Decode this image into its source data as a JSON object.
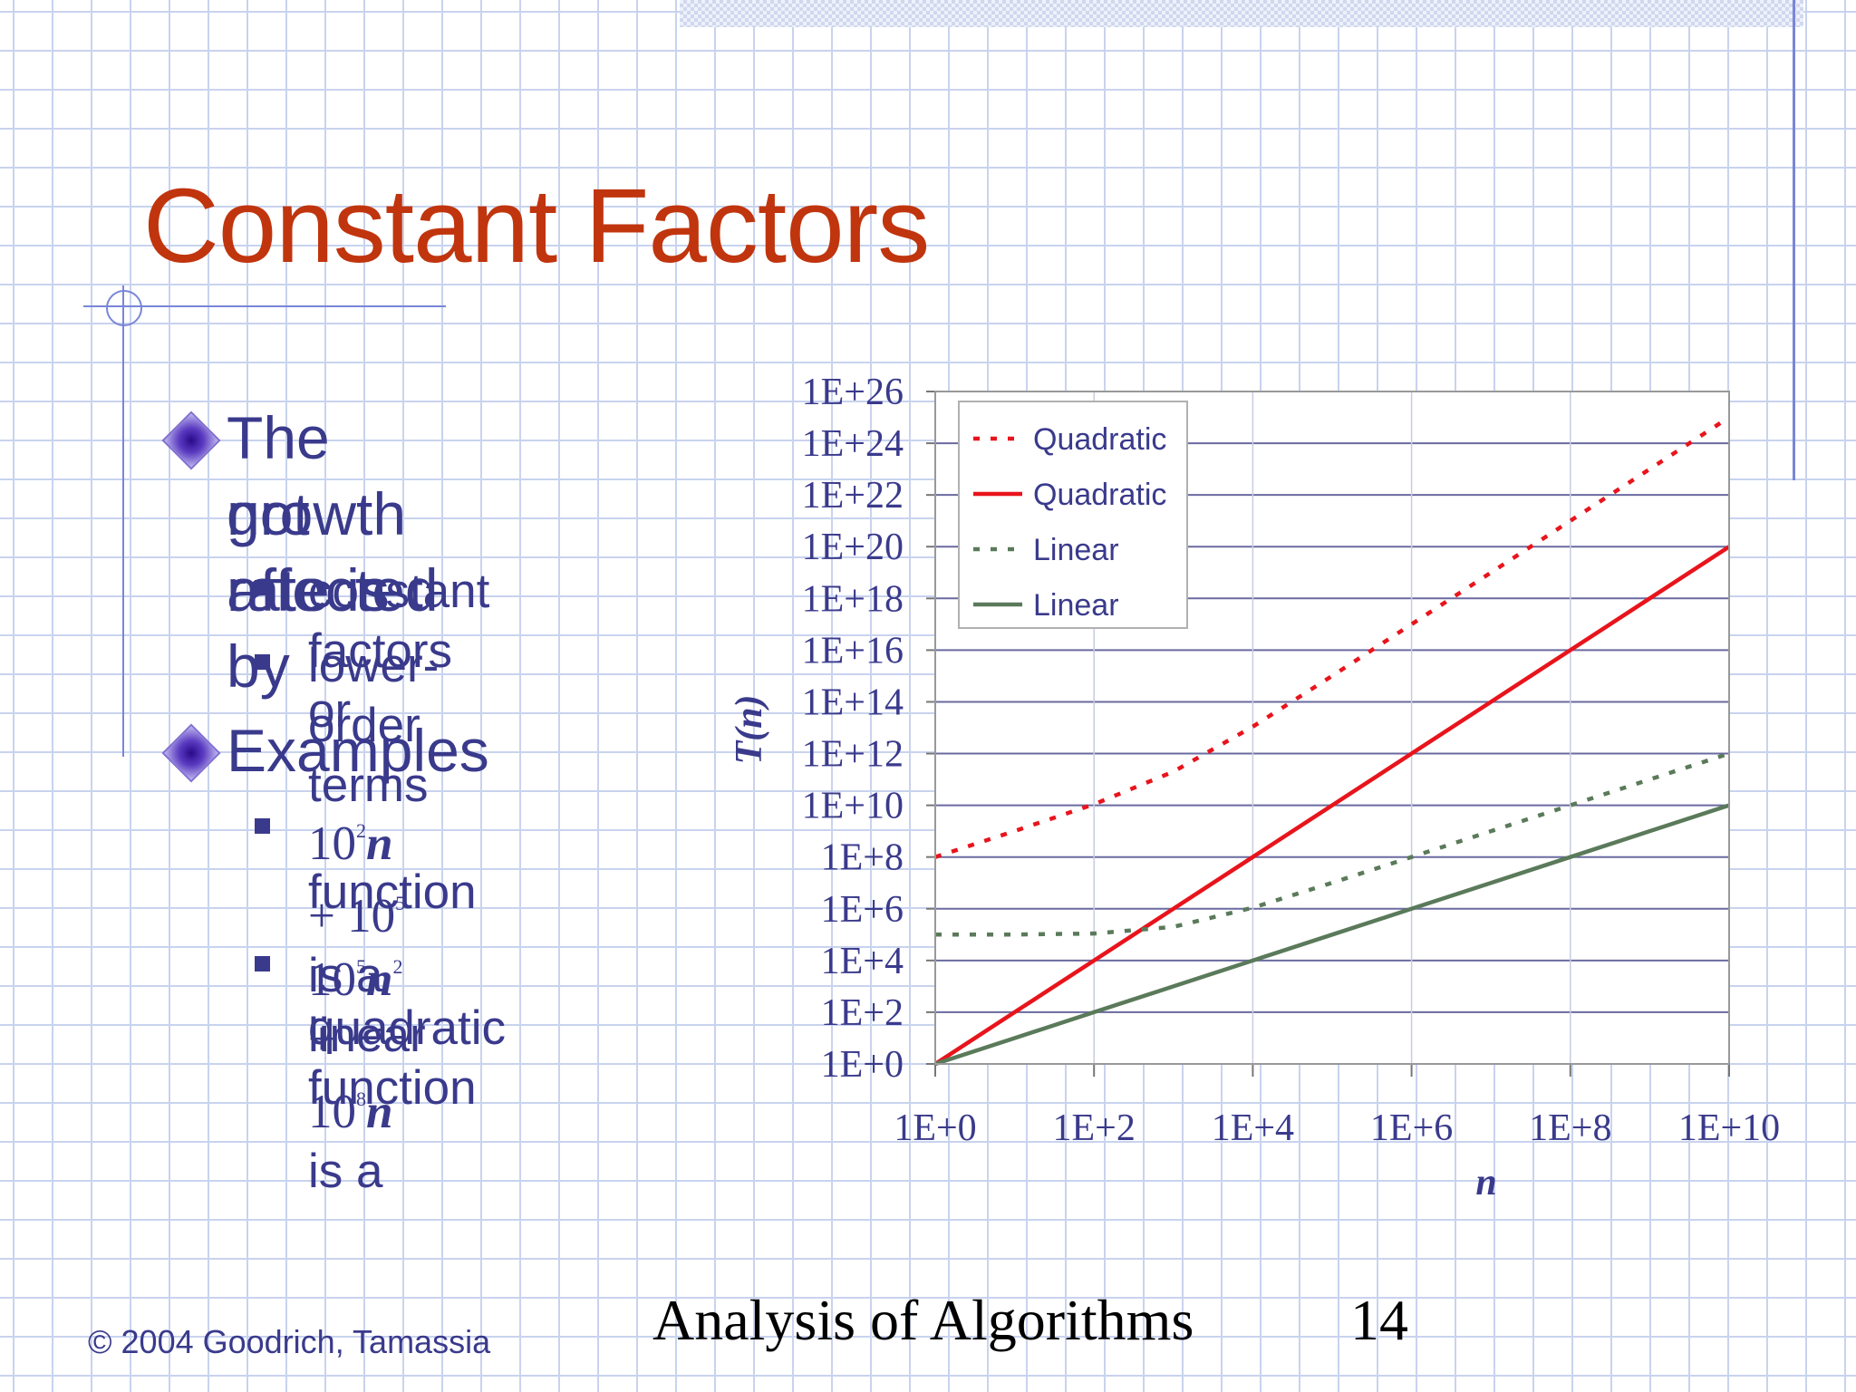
{
  "slide": {
    "title": "Constant Factors",
    "bullets": [
      {
        "lines": [
          "The growth rate is",
          "not affected by"
        ],
        "sub": [
          "constant factors or",
          "lower-order terms"
        ]
      },
      {
        "lines": [
          "Examples"
        ],
        "sub": []
      }
    ],
    "examples": [
      {
        "a": "10",
        "a_exp": "2",
        "b": "n",
        "op": " + ",
        "c": "10",
        "c_exp": "5",
        "tail": " is a linear",
        "line2": "function"
      },
      {
        "a": "10",
        "a_exp": "5",
        "b": "n",
        "b_exp": "2",
        "op": " + ",
        "c": "10",
        "c_exp": "8",
        "d": "n",
        "tail": " is a",
        "line2": "quadratic function"
      }
    ],
    "footer": {
      "copyright": "© 2004 Goodrich, Tamassia",
      "course": "Analysis of Algorithms",
      "page": "14"
    }
  },
  "chart_data": {
    "type": "line",
    "title": "",
    "xlabel": "n",
    "ylabel": "T(n)",
    "x_scale": "log",
    "y_scale": "log",
    "xlim_exp": [
      0,
      10
    ],
    "ylim_exp": [
      0,
      26
    ],
    "x_ticks": [
      "1E+0",
      "1E+2",
      "1E+4",
      "1E+6",
      "1E+8",
      "1E+10"
    ],
    "y_ticks": [
      "1E+0",
      "1E+2",
      "1E+4",
      "1E+6",
      "1E+8",
      "1E+10",
      "1E+12",
      "1E+14",
      "1E+16",
      "1E+18",
      "1E+20",
      "1E+22",
      "1E+24",
      "1E+26"
    ],
    "grid": "horizontal",
    "legend_position": "top-left",
    "x": [
      1,
      10,
      100,
      1000,
      10000,
      100000,
      1000000,
      10000000,
      100000000,
      1000000000,
      10000000000
    ],
    "series": [
      {
        "name": "Quadratic",
        "style": "dotted",
        "color": "#e8141c",
        "formula": "10^5 n^2 + 10^8 n",
        "values": [
          100100000.0,
          1010000000.0,
          11000000000.0,
          200000000000.0,
          11000000000000.0,
          1010000000000000.0,
          1.0001e+17,
          1.00001e+19,
          1e+21,
          1e+23,
          1e+25
        ]
      },
      {
        "name": "Quadratic",
        "style": "solid",
        "color": "#e8141c",
        "formula": "n^2",
        "values": [
          1,
          100,
          10000,
          1000000.0,
          100000000.0,
          10000000000.0,
          1000000000000.0,
          100000000000000.0,
          1e+16,
          1e+18,
          1e+20
        ]
      },
      {
        "name": "Linear",
        "style": "dotted",
        "color": "#5a7a5a",
        "formula": "10^2 n + 10^5",
        "values": [
          100100,
          101000,
          110000,
          200000,
          1100000,
          10100000,
          100100000,
          1000100000,
          10000100000,
          100000100000,
          1000000100000
        ]
      },
      {
        "name": "Linear",
        "style": "solid",
        "color": "#5a7a5a",
        "formula": "n",
        "values": [
          1,
          10,
          100,
          1000,
          10000,
          100000,
          1000000,
          10000000,
          100000000,
          1000000000,
          10000000000
        ]
      }
    ]
  }
}
